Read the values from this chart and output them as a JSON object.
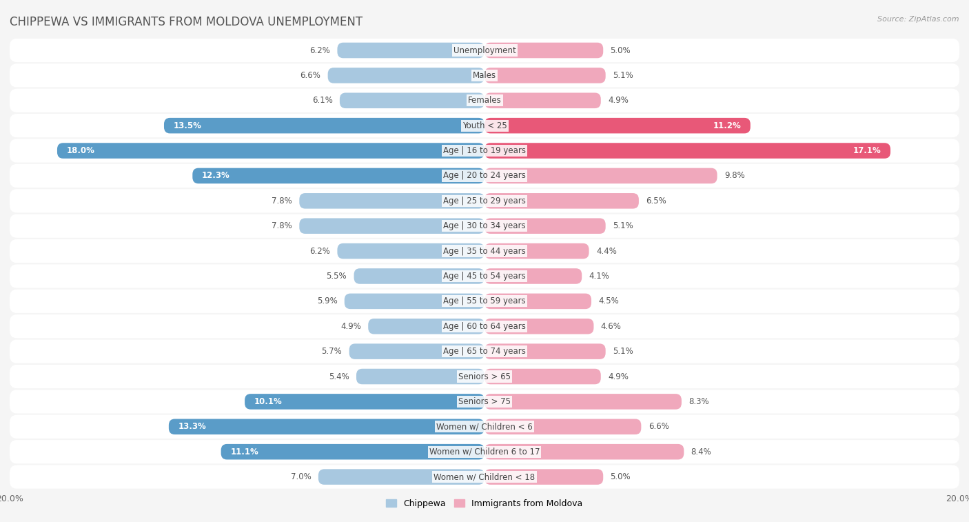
{
  "title": "CHIPPEWA VS IMMIGRANTS FROM MOLDOVA UNEMPLOYMENT",
  "source": "Source: ZipAtlas.com",
  "categories": [
    "Unemployment",
    "Males",
    "Females",
    "Youth < 25",
    "Age | 16 to 19 years",
    "Age | 20 to 24 years",
    "Age | 25 to 29 years",
    "Age | 30 to 34 years",
    "Age | 35 to 44 years",
    "Age | 45 to 54 years",
    "Age | 55 to 59 years",
    "Age | 60 to 64 years",
    "Age | 65 to 74 years",
    "Seniors > 65",
    "Seniors > 75",
    "Women w/ Children < 6",
    "Women w/ Children 6 to 17",
    "Women w/ Children < 18"
  ],
  "chippewa": [
    6.2,
    6.6,
    6.1,
    13.5,
    18.0,
    12.3,
    7.8,
    7.8,
    6.2,
    5.5,
    5.9,
    4.9,
    5.7,
    5.4,
    10.1,
    13.3,
    11.1,
    7.0
  ],
  "moldova": [
    5.0,
    5.1,
    4.9,
    11.2,
    17.1,
    9.8,
    6.5,
    5.1,
    4.4,
    4.1,
    4.5,
    4.6,
    5.1,
    4.9,
    8.3,
    6.6,
    8.4,
    5.0
  ],
  "chippewa_color": "#a8c8e0",
  "moldova_color": "#f0a8bc",
  "chippewa_highlight_color": "#5a9cc8",
  "moldova_highlight_color": "#e85878",
  "highlight_threshold": 10.0,
  "axis_limit": 20.0,
  "bg_row_color": "#e8e8e8",
  "bar_height": 0.62,
  "label_fontsize": 8.5,
  "category_fontsize": 8.5,
  "title_fontsize": 12,
  "legend_fontsize": 9,
  "title_color": "#555555",
  "source_color": "#999999"
}
